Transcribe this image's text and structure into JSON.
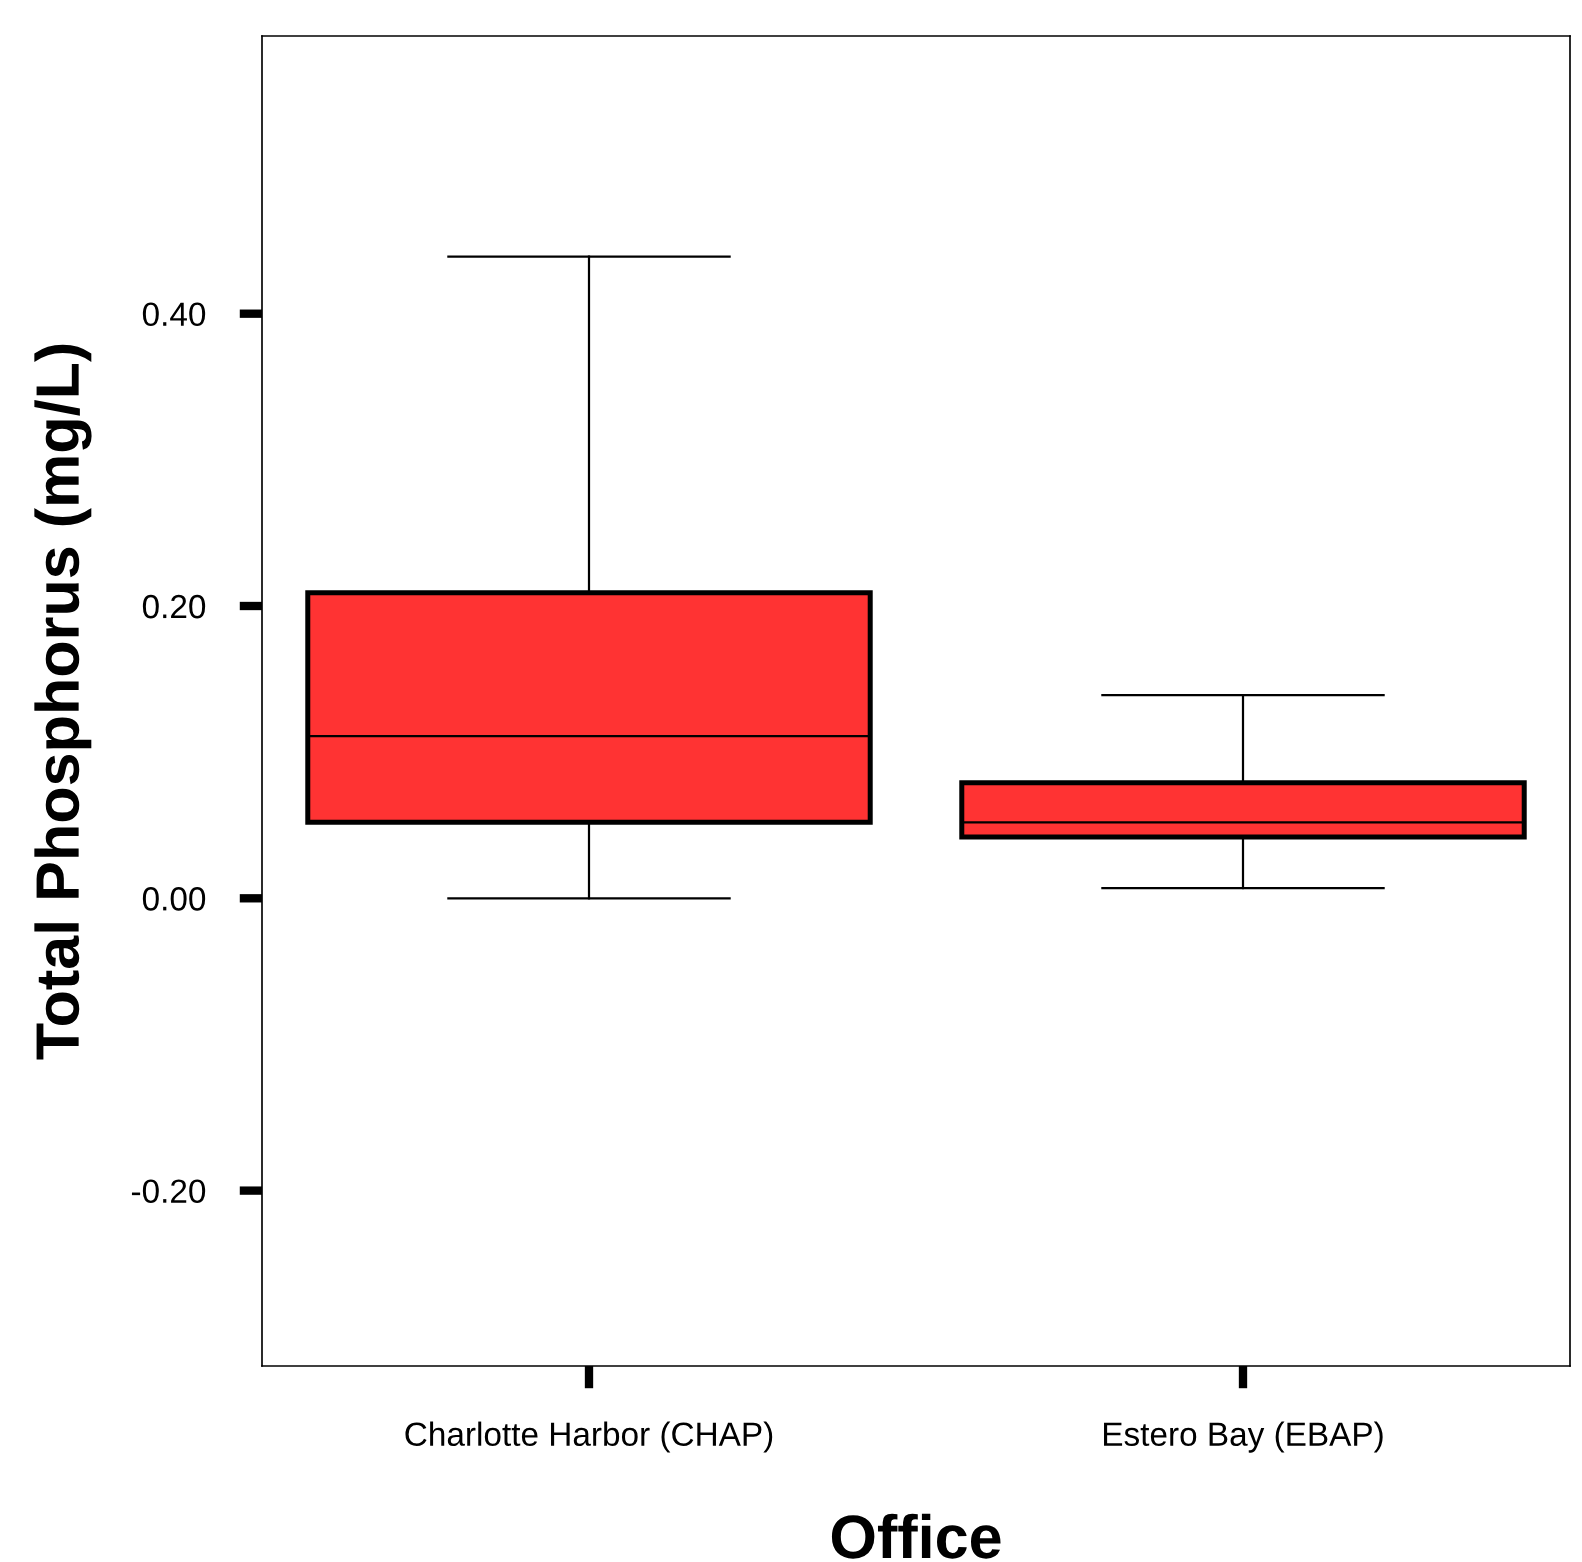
{
  "chart_data": {
    "type": "box",
    "xlabel": "Office",
    "ylabel": "Total Phosphorus (mg/L)",
    "categories": [
      "Charlotte Harbor (CHAP)",
      "Estero Bay (EBAP)"
    ],
    "boxes": [
      {
        "low": 0.0,
        "q1": 0.052,
        "median": 0.111,
        "q3": 0.209,
        "high": 0.439
      },
      {
        "low": 0.007,
        "q1": 0.042,
        "median": 0.052,
        "q3": 0.079,
        "high": 0.139
      }
    ],
    "color": "#ff3333",
    "ylim": [
      -0.32,
      0.59
    ],
    "yticks": [
      {
        "value": -0.2,
        "label": "-0.20"
      },
      {
        "value": 0.0,
        "label": "0.00"
      },
      {
        "value": 0.2,
        "label": "0.20"
      },
      {
        "value": 0.4,
        "label": "0.40"
      }
    ],
    "grid": false,
    "legend": false
  }
}
